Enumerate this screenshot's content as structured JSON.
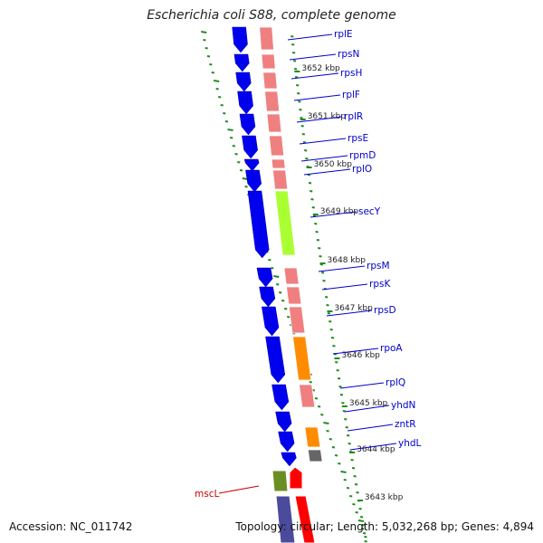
{
  "title": "Escherichia coli S88, complete genome",
  "accession": "Accession: NC_011742",
  "topology": "Topology: circular; Length: 5,032,268 bp; Genes: 4,894",
  "colors": {
    "backbone": "#8a8a8a",
    "gene_strand": "#0000ee",
    "ribosomal": "#f08080",
    "translocase": "#aaff33",
    "transcription": "#ff8c00",
    "zinc_regulator": "#ff8c00",
    "hypothetical": "#666666",
    "mscL_block": "#6b8e23",
    "mscL_gene": "#ff0000",
    "tick": "#228b22",
    "label": "#0000cc",
    "label_alt": "#cc0000"
  },
  "kbp_ticks": [
    "3652 kbp",
    "3651 kbp",
    "3650 kbp",
    "3649 kbp",
    "3648 kbp",
    "3647 kbp",
    "3646 kbp",
    "3645 kbp",
    "3644 kbp",
    "3643 kbp"
  ],
  "gene_labels": [
    "rplE",
    "rpsN",
    "rpsH",
    "rplF",
    "rplR",
    "rpsE",
    "rpmD",
    "rplO",
    "secY",
    "rpsM",
    "rpsK",
    "rpsD",
    "rpoA",
    "rplQ",
    "yhdN",
    "zntR",
    "yhdL",
    "mscL"
  ]
}
